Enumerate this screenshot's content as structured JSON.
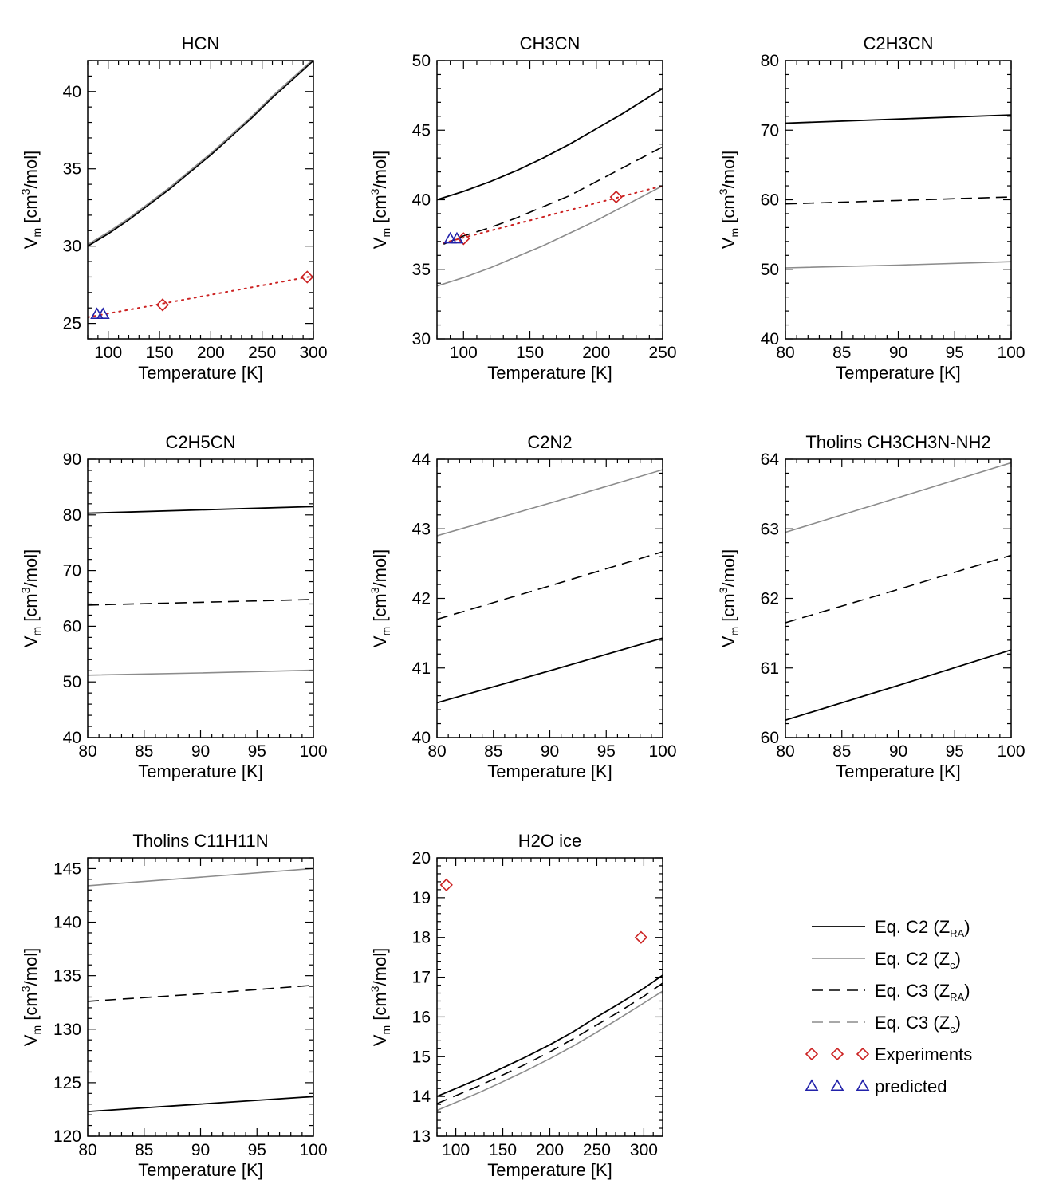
{
  "xlabel": "Temperature [K]",
  "ylabel": "V",
  "ylabel_sub": "m",
  "ylabel_unit_pre": " [cm",
  "ylabel_sup": "3",
  "ylabel_unit_post": "/mol]",
  "colors": {
    "black": "#000000",
    "gray": "#8c8c8c",
    "experiment": "#cc2222",
    "predicted": "#2222aa"
  },
  "legend": {
    "items": [
      {
        "name": "eq-c2-zra",
        "label": "Eq. C2 (Z",
        "sub": "RA",
        "suffix": ")",
        "style": "solid-black"
      },
      {
        "name": "eq-c2-zc",
        "label": "Eq. C2 (Z",
        "sub": "c",
        "suffix": ")",
        "style": "solid-gray"
      },
      {
        "name": "eq-c3-zra",
        "label": "Eq. C3 (Z",
        "sub": "RA",
        "suffix": ")",
        "style": "dashed-black"
      },
      {
        "name": "eq-c3-zc",
        "label": "Eq. C3 (Z",
        "sub": "c",
        "suffix": ")",
        "style": "dashed-gray"
      },
      {
        "name": "experiments",
        "label": "Experiments",
        "sub": "",
        "suffix": "",
        "style": "diamond"
      },
      {
        "name": "predicted",
        "label": "predicted",
        "sub": "",
        "suffix": "",
        "style": "triangle"
      }
    ]
  },
  "chart_data": [
    {
      "type": "line",
      "title": "HCN",
      "xlim": [
        80,
        300
      ],
      "ylim": [
        24,
        42
      ],
      "xticks": [
        100,
        150,
        200,
        250,
        300
      ],
      "yticks": [
        25,
        30,
        35,
        40
      ],
      "series": [
        {
          "name": "Eq. C2 (ZRA)",
          "style": "solid-black",
          "x": [
            80,
            100,
            120,
            140,
            160,
            180,
            200,
            220,
            240,
            260,
            280,
            300
          ],
          "y": [
            30.0,
            30.8,
            31.7,
            32.7,
            33.7,
            34.8,
            35.9,
            37.1,
            38.3,
            39.6,
            40.8,
            42.0
          ]
        },
        {
          "name": "Eq. C2 (Zc)",
          "style": "solid-gray",
          "x": [
            80,
            100,
            120,
            140,
            160,
            180,
            200,
            220,
            240,
            260,
            280,
            300
          ],
          "y": [
            30.1,
            30.9,
            31.8,
            32.8,
            33.8,
            34.9,
            36.0,
            37.2,
            38.4,
            39.7,
            40.9,
            42.1
          ]
        },
        {
          "name": "Experiments fit",
          "style": "dotted-red",
          "x": [
            80,
            295
          ],
          "y": [
            25.4,
            28.0
          ]
        }
      ],
      "experiments": [
        {
          "x": 153,
          "y": 26.2
        },
        {
          "x": 294,
          "y": 28.0
        }
      ],
      "predicted": [
        {
          "x": 89,
          "y": 25.6
        },
        {
          "x": 95,
          "y": 25.6
        }
      ]
    },
    {
      "type": "line",
      "title": "CH3CN",
      "xlim": [
        80,
        250
      ],
      "ylim": [
        30,
        50
      ],
      "xticks": [
        100,
        150,
        200,
        250
      ],
      "yticks": [
        30,
        35,
        40,
        45,
        50
      ],
      "series": [
        {
          "name": "Eq. C2 (ZRA)",
          "style": "solid-black",
          "x": [
            80,
            100,
            120,
            140,
            160,
            180,
            200,
            220,
            250
          ],
          "y": [
            40.0,
            40.6,
            41.3,
            42.1,
            43.0,
            44.0,
            45.1,
            46.2,
            48.0
          ]
        },
        {
          "name": "Eq. C3 (ZRA)",
          "style": "dashed-black",
          "x": [
            85,
            100,
            120,
            140,
            160,
            180,
            200,
            220,
            250
          ],
          "y": [
            36.8,
            37.4,
            38.0,
            38.7,
            39.5,
            40.3,
            41.3,
            42.3,
            43.8
          ]
        },
        {
          "name": "Eq. C2 (Zc)",
          "style": "solid-gray",
          "x": [
            80,
            100,
            120,
            140,
            160,
            180,
            200,
            220,
            250
          ],
          "y": [
            33.8,
            34.4,
            35.1,
            35.9,
            36.7,
            37.6,
            38.5,
            39.5,
            41.0
          ]
        },
        {
          "name": "Experiments fit",
          "style": "dotted-red",
          "x": [
            85,
            250
          ],
          "y": [
            36.9,
            41.0
          ]
        }
      ],
      "experiments": [
        {
          "x": 100,
          "y": 37.2
        },
        {
          "x": 215,
          "y": 40.2
        }
      ],
      "predicted": [
        {
          "x": 90,
          "y": 37.2
        },
        {
          "x": 95,
          "y": 37.2
        }
      ]
    },
    {
      "type": "line",
      "title": "C2H3CN",
      "xlim": [
        80,
        100
      ],
      "ylim": [
        40,
        80
      ],
      "xticks": [
        80,
        85,
        90,
        95,
        100
      ],
      "yticks": [
        40,
        50,
        60,
        70,
        80
      ],
      "series": [
        {
          "name": "Eq. C2 (ZRA)",
          "style": "solid-black",
          "x": [
            80,
            90,
            100
          ],
          "y": [
            71.0,
            71.6,
            72.2
          ]
        },
        {
          "name": "Eq. C3 (ZRA)",
          "style": "dashed-black",
          "x": [
            80,
            90,
            100
          ],
          "y": [
            59.4,
            59.9,
            60.4
          ]
        },
        {
          "name": "Eq. C2 (Zc)",
          "style": "solid-gray",
          "x": [
            80,
            90,
            100
          ],
          "y": [
            50.2,
            50.6,
            51.1
          ]
        }
      ],
      "experiments": [],
      "predicted": []
    },
    {
      "type": "line",
      "title": "C2H5CN",
      "xlim": [
        80,
        100
      ],
      "ylim": [
        40,
        90
      ],
      "xticks": [
        80,
        85,
        90,
        95,
        100
      ],
      "yticks": [
        40,
        50,
        60,
        70,
        80,
        90
      ],
      "series": [
        {
          "name": "Eq. C2 (ZRA)",
          "style": "solid-black",
          "x": [
            80,
            90,
            100
          ],
          "y": [
            80.3,
            80.9,
            81.5
          ]
        },
        {
          "name": "Eq. C3 (ZRA)",
          "style": "dashed-black",
          "x": [
            80,
            90,
            100
          ],
          "y": [
            63.8,
            64.3,
            64.8
          ]
        },
        {
          "name": "Eq. C2 (Zc)",
          "style": "solid-gray",
          "x": [
            80,
            90,
            100
          ],
          "y": [
            51.2,
            51.6,
            52.1
          ]
        }
      ],
      "experiments": [],
      "predicted": []
    },
    {
      "type": "line",
      "title": "C2N2",
      "xlim": [
        80,
        100
      ],
      "ylim": [
        40,
        44
      ],
      "xticks": [
        80,
        85,
        90,
        95,
        100
      ],
      "yticks": [
        40,
        41,
        42,
        43,
        44
      ],
      "series": [
        {
          "name": "Eq. C2 (Zc)",
          "style": "solid-gray",
          "x": [
            80,
            90,
            100
          ],
          "y": [
            42.9,
            43.37,
            43.85
          ]
        },
        {
          "name": "Eq. C3 (ZRA)",
          "style": "dashed-black",
          "x": [
            80,
            90,
            100
          ],
          "y": [
            41.7,
            42.18,
            42.67
          ]
        },
        {
          "name": "Eq. C2 (ZRA)",
          "style": "solid-black",
          "x": [
            80,
            90,
            100
          ],
          "y": [
            40.5,
            40.96,
            41.43
          ]
        }
      ],
      "experiments": [],
      "predicted": []
    },
    {
      "type": "line",
      "title": "Tholins CH3CH3N-NH2",
      "xlim": [
        80,
        100
      ],
      "ylim": [
        60,
        64
      ],
      "xticks": [
        80,
        85,
        90,
        95,
        100
      ],
      "yticks": [
        60,
        61,
        62,
        63,
        64
      ],
      "series": [
        {
          "name": "Eq. C2 (Zc)",
          "style": "solid-gray",
          "x": [
            80,
            90,
            100
          ],
          "y": [
            62.95,
            63.45,
            63.95
          ]
        },
        {
          "name": "Eq. C3 (ZRA)",
          "style": "dashed-black",
          "x": [
            80,
            90,
            100
          ],
          "y": [
            61.65,
            62.13,
            62.62
          ]
        },
        {
          "name": "Eq. C2 (ZRA)",
          "style": "solid-black",
          "x": [
            80,
            90,
            100
          ],
          "y": [
            60.25,
            60.75,
            61.26
          ]
        }
      ],
      "experiments": [],
      "predicted": []
    },
    {
      "type": "line",
      "title": "Tholins C11H11N",
      "xlim": [
        80,
        100
      ],
      "ylim": [
        120,
        146
      ],
      "xticks": [
        80,
        85,
        90,
        95,
        100
      ],
      "yticks": [
        120,
        125,
        130,
        135,
        140,
        145
      ],
      "series": [
        {
          "name": "Eq. C2 (Zc)",
          "style": "solid-gray",
          "x": [
            80,
            90,
            100
          ],
          "y": [
            143.4,
            144.2,
            145.0
          ]
        },
        {
          "name": "Eq. C3 (ZRA)",
          "style": "dashed-black",
          "x": [
            80,
            90,
            100
          ],
          "y": [
            132.6,
            133.3,
            134.1
          ]
        },
        {
          "name": "Eq. C2 (ZRA)",
          "style": "solid-black",
          "x": [
            80,
            90,
            100
          ],
          "y": [
            122.3,
            123.0,
            123.7
          ]
        }
      ],
      "experiments": [],
      "predicted": []
    },
    {
      "type": "line",
      "title": "H2O ice",
      "xlim": [
        80,
        320
      ],
      "ylim": [
        13,
        20
      ],
      "xticks": [
        100,
        150,
        200,
        250,
        300
      ],
      "yticks": [
        13,
        14,
        15,
        16,
        17,
        18,
        19,
        20
      ],
      "series": [
        {
          "name": "Eq. C2 (ZRA)",
          "style": "solid-black",
          "x": [
            80,
            100,
            125,
            150,
            175,
            200,
            225,
            250,
            275,
            300,
            320
          ],
          "y": [
            14.0,
            14.2,
            14.45,
            14.72,
            15.0,
            15.3,
            15.63,
            16.0,
            16.35,
            16.72,
            17.05
          ]
        },
        {
          "name": "Eq. C3 (ZRA)",
          "style": "dashed-black",
          "x": [
            80,
            100,
            125,
            150,
            175,
            200,
            225,
            250,
            275,
            300,
            320
          ],
          "y": [
            13.82,
            14.02,
            14.27,
            14.54,
            14.82,
            15.12,
            15.45,
            15.8,
            16.15,
            16.52,
            16.85
          ]
        },
        {
          "name": "Eq. C2 (Zc)",
          "style": "solid-gray",
          "x": [
            80,
            100,
            125,
            150,
            175,
            200,
            225,
            250,
            275,
            300,
            320
          ],
          "y": [
            13.65,
            13.85,
            14.1,
            14.37,
            14.65,
            14.95,
            15.27,
            15.62,
            15.98,
            16.35,
            16.65
          ]
        }
      ],
      "experiments": [
        {
          "x": 90,
          "y": 19.32
        },
        {
          "x": 297,
          "y": 18.0
        }
      ],
      "predicted": []
    }
  ]
}
